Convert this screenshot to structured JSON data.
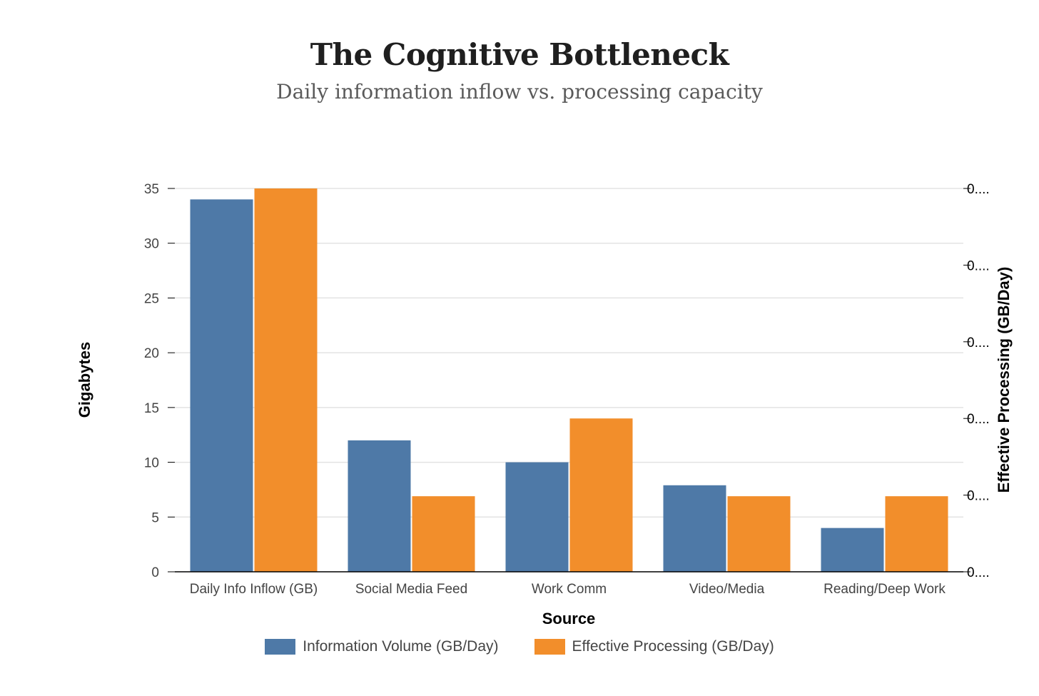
{
  "chart_data": {
    "type": "bar",
    "title": "The Cognitive Bottleneck",
    "subtitle": "Daily information inflow vs. processing capacity",
    "xlabel": "Source",
    "ylabel": "Gigabytes",
    "y2label": "Effective Processing (GB/Day)",
    "categories": [
      "Daily Info Inflow (GB)",
      "Social Media Feed",
      "Work Comm",
      "Video/Media",
      "Reading/Deep Work"
    ],
    "series": [
      {
        "name": "Information Volume (GB/Day)",
        "values": [
          34,
          12,
          10,
          7.9,
          4
        ],
        "color": "#4e79a7",
        "axis": "left"
      },
      {
        "name": "Effective Processing (GB/Day)",
        "values": [
          35,
          6.9,
          14,
          6.9,
          6.9
        ],
        "color": "#f28e2b",
        "axis": "left"
      }
    ],
    "ylim": [
      0,
      35
    ],
    "yticks": [
      "0",
      "5",
      "10",
      "15",
      "20",
      "25",
      "30",
      "35"
    ],
    "y2ticks": [
      "0....",
      "0....",
      "0....",
      "0....",
      "0....",
      "0...."
    ],
    "grid": true,
    "legend_position": "bottom"
  }
}
